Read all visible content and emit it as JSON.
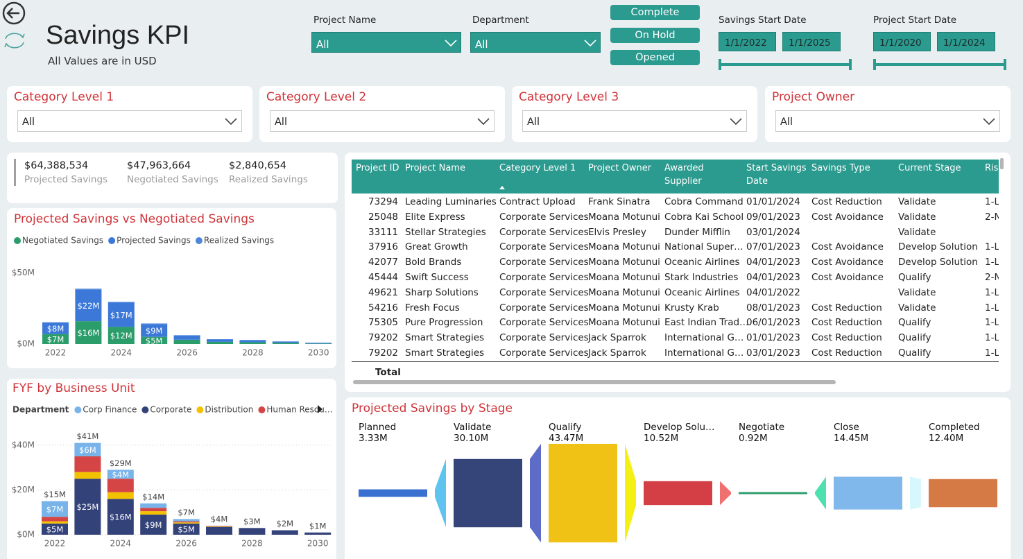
{
  "header": {
    "title": "Savings KPI",
    "subtitle": "All Values are in USD"
  },
  "filters": {
    "project_name": {
      "label": "Project Name",
      "value": "All"
    },
    "department": {
      "label": "Department",
      "value": "All"
    },
    "status_buttons": [
      "Complete",
      "On Hold",
      "Opened"
    ],
    "savings_start_date": {
      "label": "Savings Start Date",
      "from": "1/1/2022",
      "to": "1/1/2025"
    },
    "project_start_date": {
      "label": "Project Start Date",
      "from": "1/1/2020",
      "to": "1/1/2024"
    }
  },
  "slicers": [
    {
      "label": "Category Level 1",
      "value": "All"
    },
    {
      "label": "Category Level 2",
      "value": "All"
    },
    {
      "label": "Category Level 3",
      "value": "All"
    },
    {
      "label": "Project Owner",
      "value": "All"
    }
  ],
  "kpis": [
    {
      "value": "$64,388,534",
      "label": "Projected Savings"
    },
    {
      "value": "$47,963,664",
      "label": "Negotiated Savings"
    },
    {
      "value": "$2,840,654",
      "label": "Realized Savings"
    }
  ],
  "table": {
    "columns": [
      "Project ID",
      "Project Name",
      "Category Level 1",
      "Project Owner",
      "Awarded Supplier",
      "Start Savings Date",
      "Savings Type",
      "Current Stage",
      "Ris"
    ],
    "rows": [
      [
        "73294",
        "Leading Luminaries",
        "Contract Upload",
        "Frank Sinatra",
        "Cobra Command",
        "01/01/2024",
        "Cost Reduction",
        "Validate",
        "1-L"
      ],
      [
        "25048",
        "Elite Express",
        "Corporate Services",
        "Moana Motunui",
        "Cobra Kai School",
        "09/01/2023",
        "Cost Avoidance",
        "Validate",
        "2-N"
      ],
      [
        "33111",
        "Stellar Strategies",
        "Corporate Services",
        "Elvis Presley",
        "Dunder Mifflin",
        "03/01/2024",
        null,
        "Validate",
        null
      ],
      [
        "37916",
        "Great Growth",
        "Corporate Services",
        "Moana Motunui",
        "National Super…",
        "07/01/2023",
        "Cost Avoidance",
        "Develop Solution",
        "1-L"
      ],
      [
        "42077",
        "Bold Brands",
        "Corporate Services",
        "Moana Motunui",
        "Oceanic Airlines",
        "04/01/2023",
        "Cost Avoidance",
        "Develop Solution",
        "1-L"
      ],
      [
        "45444",
        "Swift Success",
        "Corporate Services",
        "Moana Motunui",
        "Stark Industries",
        "04/01/2023",
        "Cost Avoidance",
        "Qualify",
        "2-N"
      ],
      [
        "49621",
        "Sharp Solutions",
        "Corporate Services",
        "Moana Motunui",
        "Oceanic Airlines",
        "04/01/2022",
        null,
        "Validate",
        "1-L"
      ],
      [
        "54216",
        "Fresh Focus",
        "Corporate Services",
        "Moana Motunui",
        "Krusty Krab",
        "08/01/2023",
        "Cost Reduction",
        "Validate",
        "1-L"
      ],
      [
        "75305",
        "Pure Progression",
        "Corporate Services",
        "Moana Motunui",
        "East Indian Trad…",
        "06/01/2023",
        "Cost Reduction",
        "Qualify",
        "1-L"
      ],
      [
        "79202",
        "Smart Strategies",
        "Corporate Services",
        "Jack Sparrok",
        "International G…",
        "01/01/2023",
        "Cost Reduction",
        "Qualify",
        "1-L"
      ],
      [
        "79202",
        "Smart Strategies",
        "Corporate Services",
        "Jack Sparrok",
        "International G…",
        "03/01/2023",
        "Cost Reduction",
        "Qualify",
        "1-L"
      ]
    ],
    "total_label": "Total"
  },
  "chart_data": [
    {
      "type": "bar",
      "title": "Projected Savings vs Negotiated Savings",
      "stacked": true,
      "categories": [
        "2022",
        null,
        "2024",
        null,
        "2026",
        null,
        "2028",
        null,
        "2030"
      ],
      "series": [
        {
          "name": "Negotiated Savings",
          "color": "#2a9d6a",
          "values": [
            7,
            16,
            12,
            5,
            3,
            1.5,
            1.2,
            0.8,
            0.3
          ],
          "value_labels": [
            "$7M",
            "$16M",
            "$12M",
            "$5M",
            null,
            null,
            null,
            null,
            null
          ]
        },
        {
          "name": "Projected Savings",
          "color": "#3b78d8",
          "values": [
            8,
            22,
            17,
            9,
            3,
            1.8,
            1.5,
            0.9,
            0.5
          ],
          "value_labels": [
            "$8M",
            "$22M",
            "$17M",
            "$9M",
            null,
            null,
            null,
            null,
            null
          ]
        },
        {
          "name": "Realized Savings",
          "color": "#4f86d9",
          "values": [
            0.3,
            0.8,
            0.6,
            0.4,
            0.2,
            0.1,
            0.1,
            0.1,
            0.1
          ]
        }
      ],
      "ylim": [
        0,
        55
      ],
      "yticks": [
        {
          "value": 0,
          "label": "$0M"
        },
        {
          "value": 50,
          "label": "$50M"
        }
      ],
      "grid": false
    },
    {
      "type": "bar",
      "title": "FYF by Business Unit",
      "stacked": true,
      "legend_title": "Department",
      "categories": [
        "2022",
        null,
        "2024",
        null,
        "2026",
        null,
        "2028",
        null,
        "2030"
      ],
      "series": [
        {
          "name": "Corporate",
          "color": "#34427a",
          "values": [
            5,
            25,
            16,
            9,
            5,
            3.5,
            3,
            2,
            1
          ],
          "value_labels": [
            "$5M",
            "$25M",
            "$16M",
            "$9M",
            "$5M",
            null,
            null,
            null,
            null
          ]
        },
        {
          "name": "Distribution",
          "color": "#f2c200",
          "values": [
            1,
            3,
            3,
            1.5,
            0.5,
            0.2,
            0,
            0,
            0
          ]
        },
        {
          "name": "Human Resou…",
          "color": "#d64545",
          "values": [
            2,
            7,
            6,
            1.5,
            0.5,
            0.2,
            0,
            0,
            0
          ]
        },
        {
          "name": "Corp Finance",
          "color": "#78b4ea",
          "values": [
            7,
            6,
            4,
            2,
            1,
            0.1,
            0,
            0,
            0
          ],
          "value_labels": [
            "$7M",
            "$6M",
            "$4M",
            null,
            null,
            null,
            null,
            null,
            null
          ]
        }
      ],
      "totals": {
        "values": [
          15,
          41,
          29,
          14,
          7,
          4,
          3,
          2,
          1
        ],
        "value_labels": [
          "$15M",
          "$41M",
          "$29M",
          "$14M",
          "$7M",
          "$4M",
          "$3M",
          "$2M",
          "$1M"
        ]
      },
      "ylim": [
        0,
        48
      ],
      "yticks": [
        {
          "value": 0,
          "label": "$0M"
        },
        {
          "value": 20,
          "label": "$20M"
        },
        {
          "value": 40,
          "label": "$40M"
        }
      ],
      "grid": true
    },
    {
      "type": "funnel",
      "title": "Projected Savings by Stage",
      "categories": [
        "Planned",
        "Validate",
        "Qualify",
        "Develop Solu…",
        "Negotiate",
        "Close",
        "Completed"
      ],
      "values": [
        3.33,
        30.1,
        43.47,
        10.52,
        0.92,
        14.45,
        12.4
      ],
      "value_labels": [
        "3.33M",
        "30.10M",
        "43.47M",
        "10.52M",
        "0.92M",
        "14.45M",
        "12.40M"
      ],
      "colors": [
        "#3a70d0",
        "#354479",
        "#efc215",
        "#d43f45",
        "#2e9e6e",
        "#80b8ec",
        "#d57a45"
      ],
      "connector_colors": [
        "#5fc3f0",
        "#5d6cc7",
        "#f5f014",
        "#f07070",
        "#4fe0b0",
        "#d6f7fb"
      ]
    }
  ]
}
